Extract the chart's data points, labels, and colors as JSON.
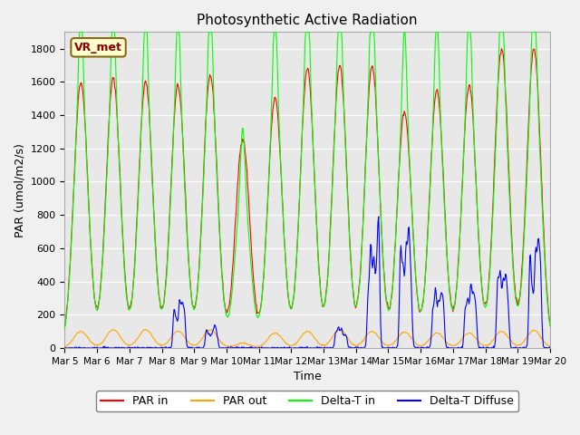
{
  "title": "Photosynthetic Active Radiation",
  "ylabel": "PAR (umol/m2/s)",
  "xlabel": "Time",
  "legend_label": "VR_met",
  "ylim": [
    0,
    1900
  ],
  "yticks": [
    0,
    200,
    400,
    600,
    800,
    1000,
    1200,
    1400,
    1600,
    1800
  ],
  "axes_facecolor": "#e8e8e8",
  "series": {
    "PAR_in": {
      "color": "red",
      "label": "PAR in"
    },
    "PAR_out": {
      "color": "orange",
      "label": "PAR out"
    },
    "Delta_T_in": {
      "color": "lime",
      "label": "Delta-T in"
    },
    "Delta_T_Diffuse": {
      "color": "blue",
      "label": "Delta-T Diffuse"
    }
  },
  "xtick_labels": [
    "Mar 5",
    "Mar 6",
    "Mar 7",
    "Mar 8",
    "Mar 9",
    "Mar 10",
    "Mar 11",
    "Mar 12",
    "Mar 13",
    "Mar 14",
    "Mar 15",
    "Mar 16",
    "Mar 17",
    "Mar 18",
    "Mar 19",
    "Mar 20"
  ],
  "n_days": 15,
  "points_per_day": 48
}
